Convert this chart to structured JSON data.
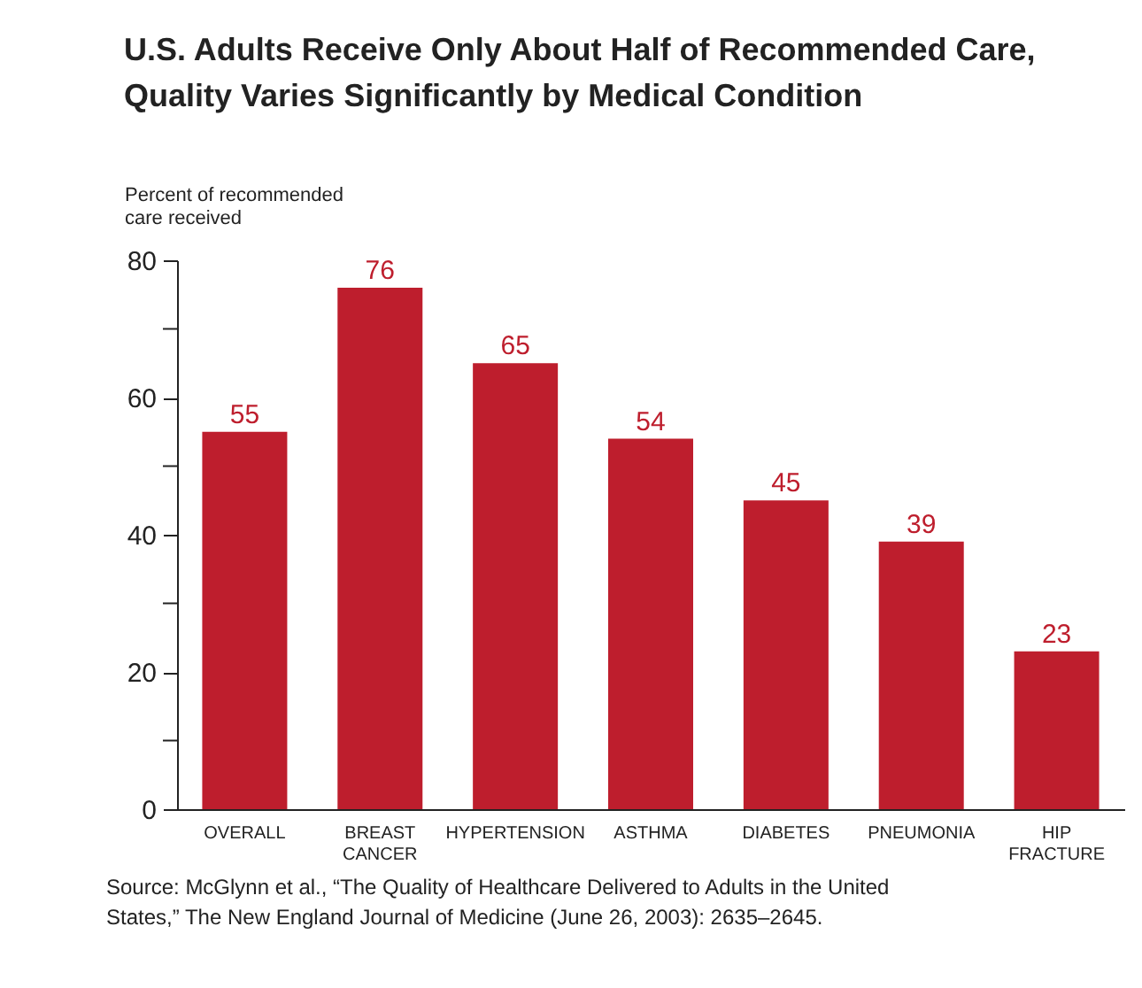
{
  "chart_data": {
    "type": "bar",
    "title": "U.S. Adults Receive Only About Half of Recommended Care, Quality Varies Significantly by Medical Condition",
    "ylabel": "Percent of recommended care received",
    "categories": [
      "OVERALL",
      "BREAST CANCER",
      "HYPERTENSION",
      "ASTHMA",
      "DIABETES",
      "PNEUMONIA",
      "HIP FRACTURE"
    ],
    "values": [
      55,
      76,
      65,
      54,
      45,
      39,
      23
    ],
    "color": "#be1e2d",
    "data_labels": true,
    "ylim": [
      0,
      80
    ],
    "yticks": [
      0,
      {
        "value": 10,
        "label": null
      },
      20,
      {
        "value": 30,
        "label": null
      },
      40,
      {
        "value": 50,
        "label": null
      },
      60,
      {
        "value": 70,
        "label": null
      },
      80
    ],
    "grid": false,
    "annotations": [
      "Source: McGlynn et al., “The Quality of Healthcare Delivered to Adults in the United States,” The New England Journal of Medicine (June 26, 2003): 2635–2645."
    ]
  }
}
